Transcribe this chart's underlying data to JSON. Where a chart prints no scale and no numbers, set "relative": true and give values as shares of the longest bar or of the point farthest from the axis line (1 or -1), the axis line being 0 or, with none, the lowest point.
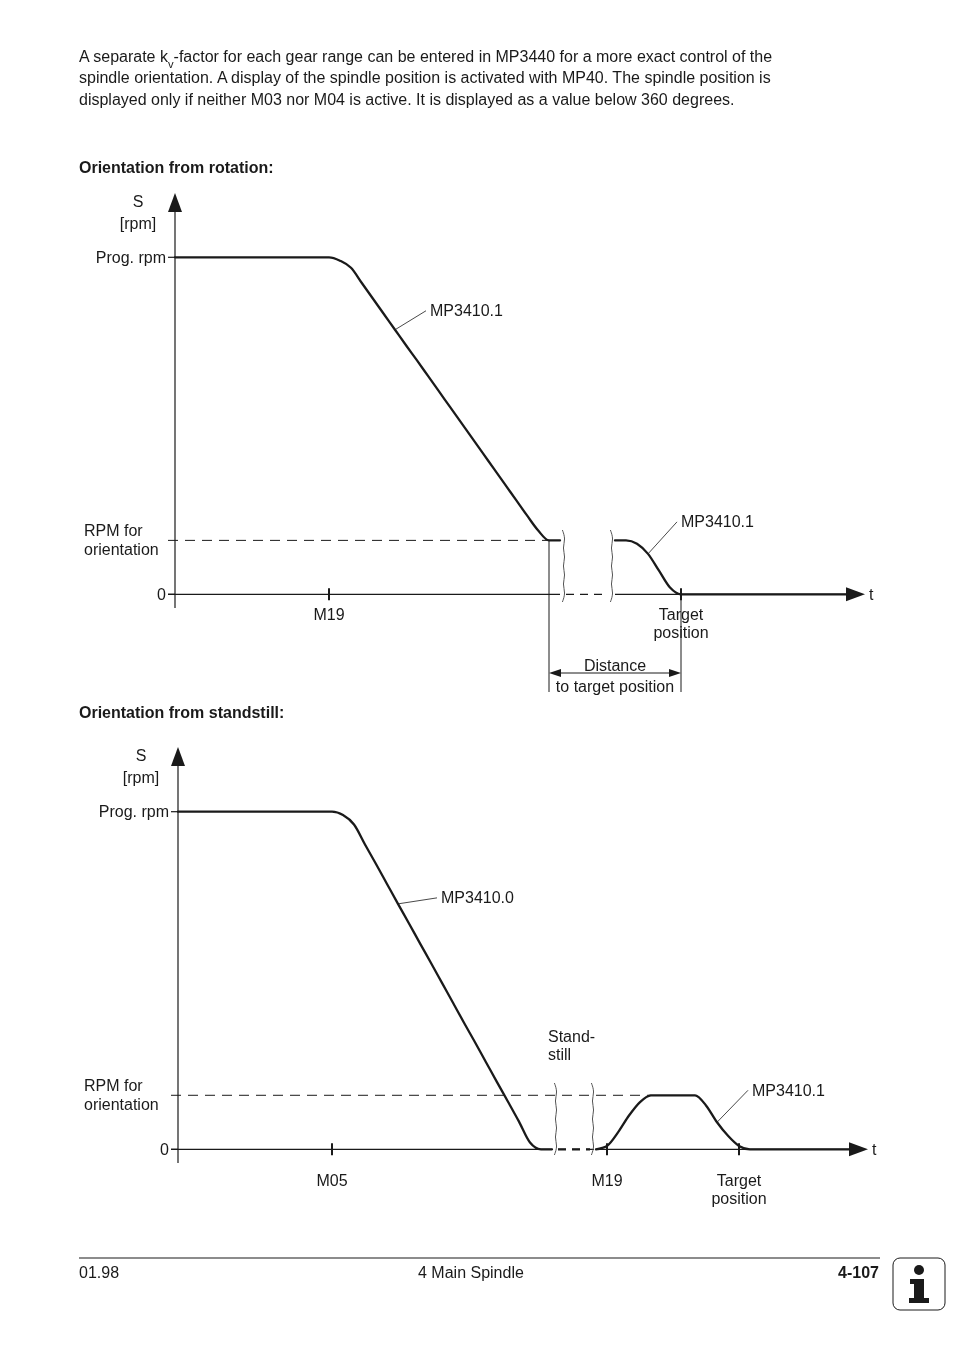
{
  "chart_data": [
    {
      "type": "line",
      "title": "Orientation from rotation:",
      "ylabel": "S\n[rpm]",
      "xlabel": "t",
      "relative": true,
      "categories": [
        null,
        null,
        null,
        null,
        null,
        null,
        null,
        null,
        null,
        null,
        null,
        null,
        null,
        null,
        "M19",
        null,
        null,
        null,
        null,
        null,
        null,
        null,
        null,
        null,
        null,
        null,
        null,
        null,
        null,
        null,
        null,
        null,
        null,
        null,
        null,
        null,
        null,
        null,
        null,
        null,
        null,
        null,
        null,
        null,
        null,
        null,
        "Target\nposition",
        null,
        null,
        null,
        null,
        null,
        null,
        null,
        null,
        null,
        null,
        null,
        null,
        null,
        null,
        null
      ],
      "series": [
        {
          "name": "MP3410.1",
          "color": "#1a1a1a",
          "values": [
            1,
            1,
            1,
            1,
            1,
            1,
            1,
            1,
            1,
            1,
            1,
            1,
            1,
            1,
            1,
            0.99,
            0.969,
            0.923,
            0.877,
            0.831,
            0.785,
            0.739,
            0.694,
            0.648,
            0.602,
            0.556,
            0.51,
            0.464,
            0.418,
            0.372,
            0.326,
            0.28,
            0.234,
            0.19,
            0.16,
            0.16,
            null,
            null,
            null,
            null,
            null,
            null,
            null,
            null,
            null,
            null,
            null,
            null,
            null,
            null,
            null,
            null,
            null,
            null,
            null,
            null,
            null,
            null,
            null,
            null,
            null,
            null
          ]
        },
        {
          "name": "MP3410.1",
          "color": "#1a1a1a",
          "values": [
            null,
            null,
            null,
            null,
            null,
            null,
            null,
            null,
            null,
            null,
            null,
            null,
            null,
            null,
            null,
            null,
            null,
            null,
            null,
            null,
            null,
            null,
            null,
            null,
            null,
            null,
            null,
            null,
            null,
            null,
            null,
            null,
            null,
            null,
            null,
            null,
            null,
            null,
            null,
            null,
            0.16,
            0.16,
            0.15,
            0.12,
            0.07,
            0.02,
            0,
            0,
            0,
            0,
            0,
            0,
            0,
            0,
            0,
            0,
            0,
            0,
            0,
            0,
            0,
            0
          ]
        }
      ],
      "ref_lines": [
        {
          "axis": "y",
          "value": 0.16,
          "label": "RPM for\norientation",
          "line_style": "dashed"
        }
      ],
      "annotations": [
        "A separate k$_{v}$-factor for each gear range can be entered in MP3440 for a more exact control of the\nspindle orientation. A display of the spindle position is activated with MP40. The spindle position is\ndisplayed only if neither M03 nor M04 is active. It is displayed as a value below 360 degrees.",
        "Prog. rpm",
        "0",
        "Distance\nto target position"
      ]
    },
    {
      "type": "line",
      "title": "Orientation from standstill:",
      "ylabel": "S\n[rpm]",
      "xlabel": "t",
      "relative": true,
      "categories": [
        null,
        null,
        null,
        null,
        null,
        null,
        null,
        null,
        null,
        null,
        null,
        null,
        null,
        null,
        "M05",
        null,
        null,
        null,
        null,
        null,
        null,
        null,
        null,
        null,
        null,
        null,
        null,
        null,
        null,
        null,
        null,
        null,
        null,
        null,
        null,
        null,
        null,
        null,
        null,
        "M19",
        null,
        null,
        null,
        null,
        null,
        null,
        null,
        null,
        null,
        null,
        null,
        "Target\nposition",
        null,
        null,
        null,
        null,
        null,
        null,
        null,
        null,
        null,
        null
      ],
      "series": [
        {
          "name": "MP3410.0",
          "color": "#1a1a1a",
          "values": [
            1,
            1,
            1,
            1,
            1,
            1,
            1,
            1,
            1,
            1,
            1,
            1,
            1,
            1,
            1,
            0.99,
            0.962,
            0.903,
            0.845,
            0.786,
            0.727,
            0.669,
            0.61,
            0.552,
            0.493,
            0.434,
            0.375,
            0.317,
            0.258,
            0.199,
            0.141,
            0.082,
            0.02,
            0,
            0,
            null,
            null,
            null,
            null,
            null,
            null,
            null,
            null,
            null,
            null,
            null,
            null,
            null,
            null,
            null,
            null,
            null,
            null,
            null,
            null,
            null,
            null,
            null,
            null,
            null,
            null,
            null
          ]
        },
        {
          "name": "MP3410.1",
          "color": "#1a1a1a",
          "values": [
            null,
            null,
            null,
            null,
            null,
            null,
            null,
            null,
            null,
            null,
            null,
            null,
            null,
            null,
            null,
            null,
            null,
            null,
            null,
            null,
            null,
            null,
            null,
            null,
            null,
            null,
            null,
            null,
            null,
            null,
            null,
            null,
            null,
            null,
            null,
            null,
            null,
            null,
            0,
            0.01,
            0.05,
            0.1,
            0.14,
            0.16,
            0.16,
            0.16,
            0.16,
            0.16,
            0.13,
            0.08,
            0.04,
            0.01,
            0,
            0,
            0,
            0,
            0,
            0,
            0,
            0,
            0,
            0
          ]
        }
      ],
      "ref_lines": [
        {
          "axis": "y",
          "value": 0.16,
          "label": "RPM for\norientation",
          "line_style": "dashed"
        }
      ],
      "annotations": [
        "Prog. rpm",
        "0",
        "Stand-\nstill",
        "01.98          4 Main Spindle          4-107"
      ]
    }
  ]
}
